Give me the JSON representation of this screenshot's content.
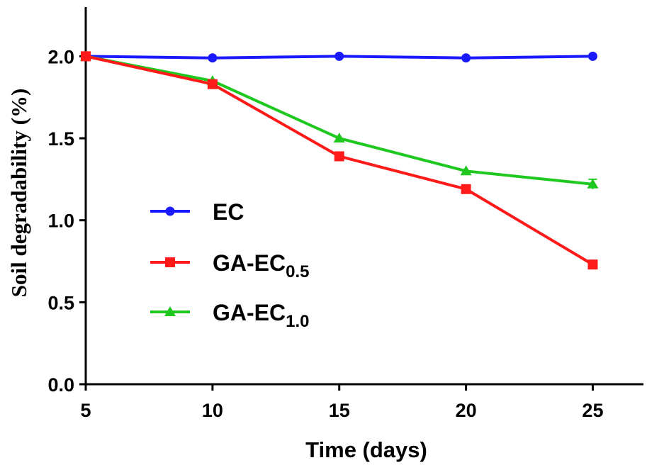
{
  "chart_data": {
    "type": "line",
    "title": "",
    "xlabel": "Time (days)",
    "ylabel": "Soil degradability (%)",
    "x": [
      5,
      10,
      15,
      20,
      25
    ],
    "xlim": [
      5,
      27
    ],
    "ylim": [
      0,
      2.3
    ],
    "xticks": [
      "5",
      "10",
      "15",
      "20",
      "25"
    ],
    "yticks": [
      "0.0",
      "0.5",
      "1.0",
      "1.5",
      "2.0"
    ],
    "legend_position": "center-left",
    "series": [
      {
        "name": "EC",
        "label_main": "EC",
        "label_sub": "",
        "color": "#1a1aff",
        "marker": "circle",
        "values": [
          2.0,
          1.99,
          2.0,
          1.99,
          2.0
        ],
        "errors": [
          0,
          0,
          0,
          0,
          0
        ]
      },
      {
        "name": "GA-EC0.5",
        "label_main": "GA-EC",
        "label_sub": "0.5",
        "color": "#ff1a1a",
        "marker": "square",
        "values": [
          2.0,
          1.83,
          1.39,
          1.19,
          0.73
        ],
        "errors": [
          0,
          0,
          0,
          0,
          0
        ]
      },
      {
        "name": "GA-EC1.0",
        "label_main": "GA-EC",
        "label_sub": "1.0",
        "color": "#1ec81e",
        "marker": "triangle",
        "values": [
          2.0,
          1.85,
          1.5,
          1.3,
          1.22
        ],
        "errors": [
          0,
          0,
          0,
          0,
          0.03
        ]
      }
    ]
  }
}
